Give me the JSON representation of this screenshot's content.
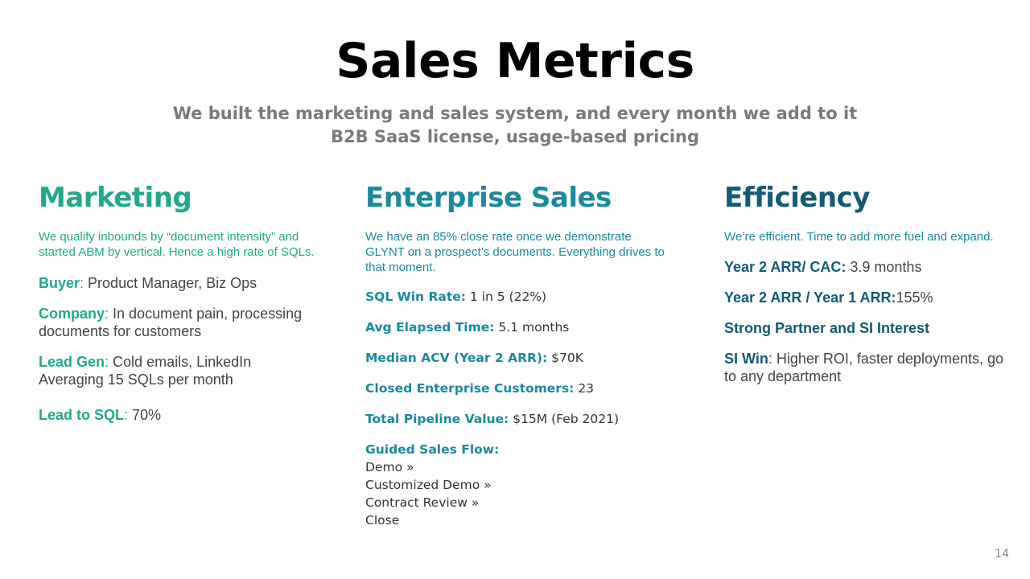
{
  "slide": {
    "title": "Sales Metrics",
    "subtitle_line1": "We built the marketing and sales system, and every month we add to it",
    "subtitle_line2": "B2B SaaS license, usage-based pricing",
    "page_number": "14"
  },
  "marketing": {
    "heading": "Marketing",
    "intro": "We qualify inbounds by “document intensity” and started ABM by vertical. Hence a high rate of SQLs.",
    "items": [
      {
        "label": "Buyer",
        "value": "Product Manager, Biz Ops"
      },
      {
        "label": "Company",
        "value": "In document pain, processing documents for customers"
      },
      {
        "label": "Lead Gen",
        "value": "Cold emails, LinkedIn",
        "value2": "Averaging 15 SQLs per month"
      },
      {
        "label": "Lead to SQL",
        "value": "70%"
      }
    ]
  },
  "enterprise": {
    "heading": "Enterprise Sales",
    "intro": "We have an 85% close rate once we demonstrate GLYNT on a prospect’s documents. Everything drives to that moment.",
    "items": [
      {
        "label": "SQL Win Rate:",
        "value": "1 in 5 (22%)"
      },
      {
        "label": "Avg Elapsed Time:",
        "value": "5.1 months"
      },
      {
        "label": "Median ACV (Year 2 ARR):",
        "value": "$70K"
      },
      {
        "label": "Closed Enterprise Customers:",
        "value": "23"
      },
      {
        "label": "Total Pipeline Value:",
        "value": "$15M (Feb 2021)"
      }
    ],
    "flow": {
      "label": "Guided Sales Flow:",
      "steps": [
        "Demo »",
        "Customized Demo »",
        "Contract Review »",
        "Close"
      ]
    }
  },
  "efficiency": {
    "heading": "Efficiency",
    "intro": "We’re efficient. Time to add more fuel and expand.",
    "items": [
      {
        "label": "Year 2 ARR/ CAC:",
        "value": "3.9 months"
      },
      {
        "label": "Year 2 ARR / Year 1 ARR:",
        "value": "155%"
      },
      {
        "label": "Strong Partner and SI Interest",
        "value": ""
      },
      {
        "label": "SI Win",
        "value": "Higher ROI, faster deployments, go to any department"
      }
    ]
  },
  "colors": {
    "marketing": "#22a98a",
    "enterprise": "#1a8a9c",
    "efficiency": "#135a73",
    "subtitle": "#7a7a7a"
  }
}
